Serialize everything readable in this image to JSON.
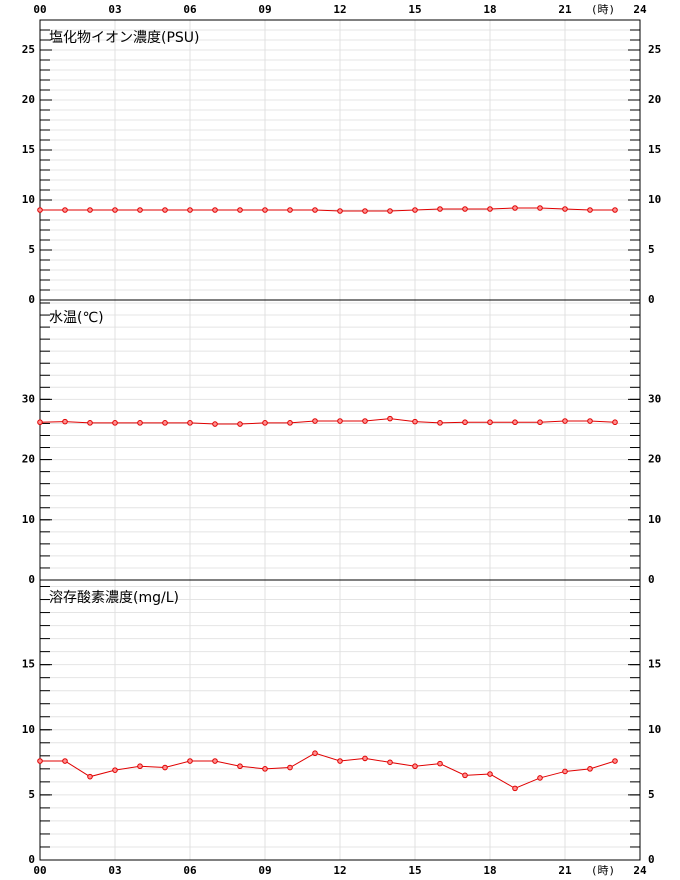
{
  "chart_data": [
    {
      "type": "line",
      "title": "塩化物イオン濃度(PSU)",
      "x_unit": "(時)",
      "x": [
        0,
        1,
        2,
        3,
        4,
        5,
        6,
        7,
        8,
        9,
        10,
        11,
        12,
        13,
        14,
        15,
        16,
        17,
        18,
        19,
        20,
        21,
        22,
        23
      ],
      "series": [
        {
          "name": "塩化物イオン濃度",
          "color": "#e00000",
          "values": [
            9.0,
            9.0,
            9.0,
            9.0,
            9.0,
            9.0,
            9.0,
            9.0,
            9.0,
            9.0,
            9.0,
            9.0,
            8.9,
            8.9,
            8.9,
            9.0,
            9.1,
            9.1,
            9.1,
            9.2,
            9.2,
            9.1,
            9.0,
            9.0
          ]
        }
      ],
      "xlim": [
        0,
        24
      ],
      "xticks": [
        {
          "value": 0,
          "label": "00"
        },
        {
          "value": 3,
          "label": "03"
        },
        {
          "value": 6,
          "label": "06"
        },
        {
          "value": 9,
          "label": "09"
        },
        {
          "value": 12,
          "label": "12"
        },
        {
          "value": 15,
          "label": "15"
        },
        {
          "value": 18,
          "label": "18"
        },
        {
          "value": 21,
          "label": "21"
        },
        {
          "value": 24,
          "label": "24"
        }
      ],
      "ylim": [
        0,
        28
      ],
      "yticks": [
        0,
        5,
        10,
        15,
        20,
        25
      ],
      "minor_step": 1,
      "grid": true
    },
    {
      "type": "line",
      "title": "水温(℃)",
      "x": [
        0,
        1,
        2,
        3,
        4,
        5,
        6,
        7,
        8,
        9,
        10,
        11,
        12,
        13,
        14,
        15,
        16,
        17,
        18,
        19,
        20,
        21,
        22,
        23
      ],
      "series": [
        {
          "name": "水温",
          "color": "#e00000",
          "values": [
            26.2,
            26.3,
            26.1,
            26.1,
            26.1,
            26.1,
            26.1,
            25.9,
            25.9,
            26.1,
            26.1,
            26.4,
            26.4,
            26.4,
            26.8,
            26.3,
            26.1,
            26.2,
            26.2,
            26.2,
            26.2,
            26.4,
            26.4,
            26.2
          ]
        }
      ],
      "xlim": [
        0,
        24
      ],
      "xticks": [
        0,
        3,
        6,
        9,
        12,
        15,
        18,
        21,
        24
      ],
      "ylim": [
        0,
        46.5
      ],
      "yticks": [
        0,
        10,
        20,
        30
      ],
      "minor_step": 2,
      "grid": true
    },
    {
      "type": "line",
      "title": "溶存酸素濃度(mg/L)",
      "x_unit": "(時)",
      "x": [
        0,
        1,
        2,
        3,
        4,
        5,
        6,
        7,
        8,
        9,
        10,
        11,
        12,
        13,
        14,
        15,
        16,
        17,
        18,
        19,
        20,
        21,
        22,
        23
      ],
      "series": [
        {
          "name": "溶存酸素濃度",
          "color": "#e00000",
          "values": [
            7.6,
            7.6,
            6.4,
            6.9,
            7.2,
            7.1,
            7.6,
            7.6,
            7.2,
            7.0,
            7.1,
            8.2,
            7.6,
            7.8,
            7.5,
            7.2,
            7.4,
            6.5,
            6.6,
            5.5,
            6.3,
            6.8,
            7.0,
            7.6
          ]
        }
      ],
      "xlim": [
        0,
        24
      ],
      "xticks": [
        {
          "value": 0,
          "label": "00"
        },
        {
          "value": 3,
          "label": "03"
        },
        {
          "value": 6,
          "label": "06"
        },
        {
          "value": 9,
          "label": "09"
        },
        {
          "value": 12,
          "label": "12"
        },
        {
          "value": 15,
          "label": "15"
        },
        {
          "value": 18,
          "label": "18"
        },
        {
          "value": 21,
          "label": "21"
        },
        {
          "value": 24,
          "label": "24"
        }
      ],
      "ylim": [
        0,
        21.5
      ],
      "yticks": [
        0,
        5,
        10,
        15
      ],
      "minor_step": 1,
      "grid": true
    }
  ]
}
